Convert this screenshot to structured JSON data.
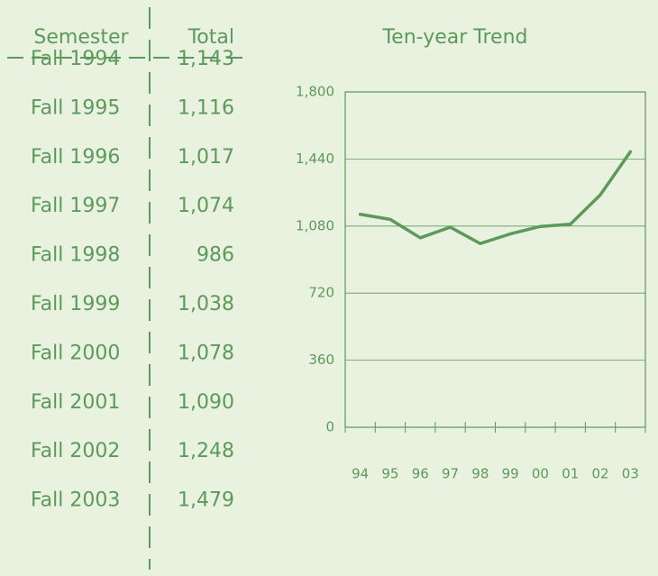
{
  "table": {
    "headers": [
      "Semester",
      "Total"
    ],
    "rows": [
      [
        "Fall 1994",
        "1,143"
      ],
      [
        "Fall 1995",
        "1,116"
      ],
      [
        "Fall 1996",
        "1,017"
      ],
      [
        "Fall 1997",
        "1,074"
      ],
      [
        "Fall 1998",
        "986"
      ],
      [
        "Fall 1999",
        "1,038"
      ],
      [
        "Fall 2000",
        "1,078"
      ],
      [
        "Fall 2001",
        "1,090"
      ],
      [
        "Fall 2002",
        "1,248"
      ],
      [
        "Fall 2003",
        "1,479"
      ]
    ]
  },
  "chart_data": {
    "type": "line",
    "title": "Ten-year Trend",
    "categories": [
      "94",
      "95",
      "96",
      "97",
      "98",
      "99",
      "00",
      "01",
      "02",
      "03"
    ],
    "values": [
      1143,
      1116,
      1017,
      1074,
      986,
      1038,
      1078,
      1090,
      1248,
      1479
    ],
    "color": "#5c9a5c",
    "ylim": [
      0,
      1800
    ],
    "yticks": [
      0,
      360,
      720,
      {
        "value": 1080,
        "label": "1,080"
      },
      {
        "value": 1440,
        "label": "1,440"
      },
      {
        "value": 1800,
        "label": "1,800"
      }
    ],
    "grid": true
  }
}
